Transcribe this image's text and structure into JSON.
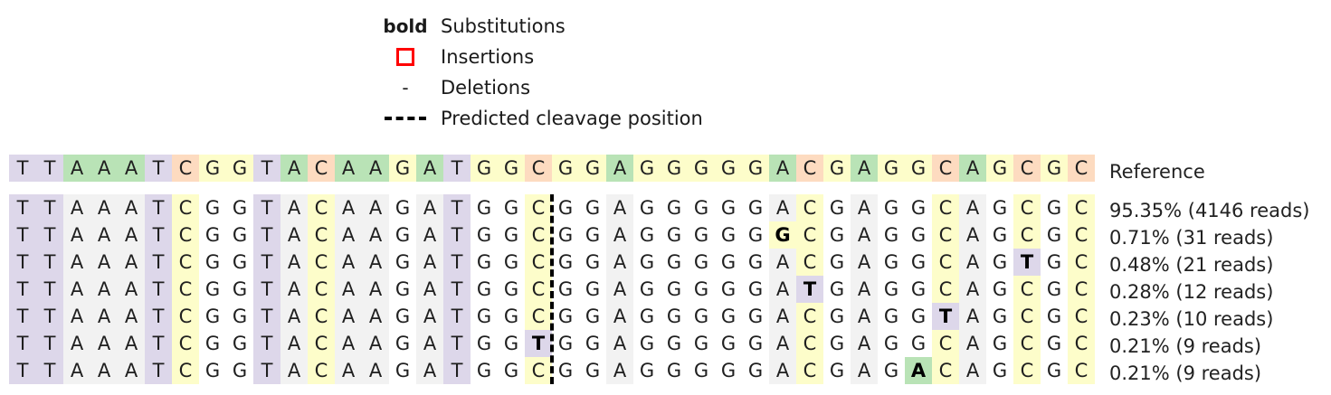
{
  "legend": {
    "substitutions": {
      "symbol": "bold",
      "label": "Substitutions"
    },
    "insertions": {
      "label": "Insertions",
      "color": "#ff0000"
    },
    "deletions": {
      "symbol": "-",
      "label": "Deletions"
    },
    "cleavage": {
      "label": "Predicted cleavage position"
    }
  },
  "colors": {
    "A": "#b9e3b6",
    "C": "#fddbc0",
    "G": "#fdfdca",
    "T": "#ddd7ea",
    "matched": {
      "A": "#f2f2f2",
      "C": "#fdfdca",
      "G": "#ffffff",
      "T": "#ddd7ea"
    }
  },
  "reference": {
    "sequence": "TTAAATCGGTACAAGATGGCGGAGGGGGACGAGGCAGCGC",
    "label": "Reference"
  },
  "cleavage_after_position": 20,
  "alleles": [
    {
      "sequence": "TTAAATCGGTACAAGATGGCGGAGGGGGACGAGGCAGCGC",
      "label": "95.35% (4146 reads)",
      "substitutions": []
    },
    {
      "sequence": "TTAAATCGGTACAAGATGGCGGAGGGGGGCGAGGCAGCGC",
      "label": "0.71% (31 reads)",
      "substitutions": [
        28
      ]
    },
    {
      "sequence": "TTAAATCGGTACAAGATGGCGGAGGGGGACGAGGCAGTGC",
      "label": "0.48% (21 reads)",
      "substitutions": [
        37
      ]
    },
    {
      "sequence": "TTAAATCGGTACAAGATGGCGGAGGGGGATGAGGCAGCGC",
      "label": "0.28% (12 reads)",
      "substitutions": [
        29
      ]
    },
    {
      "sequence": "TTAAATCGGTACAAGATGGCGGAGGGGGACGAGGTAGCGC",
      "label": "0.23% (10 reads)",
      "substitutions": [
        34
      ]
    },
    {
      "sequence": "TTAAATCGGTACAAGATGGTGGAGGGGGACGAGGCAGCGC",
      "label": "0.21% (9 reads)",
      "substitutions": [
        19
      ]
    },
    {
      "sequence": "TTAAATCGGTACAAGATGGCGGAGGGGGACGAGACAGCGC",
      "label": "0.21% (9 reads)",
      "substitutions": [
        33
      ]
    }
  ]
}
